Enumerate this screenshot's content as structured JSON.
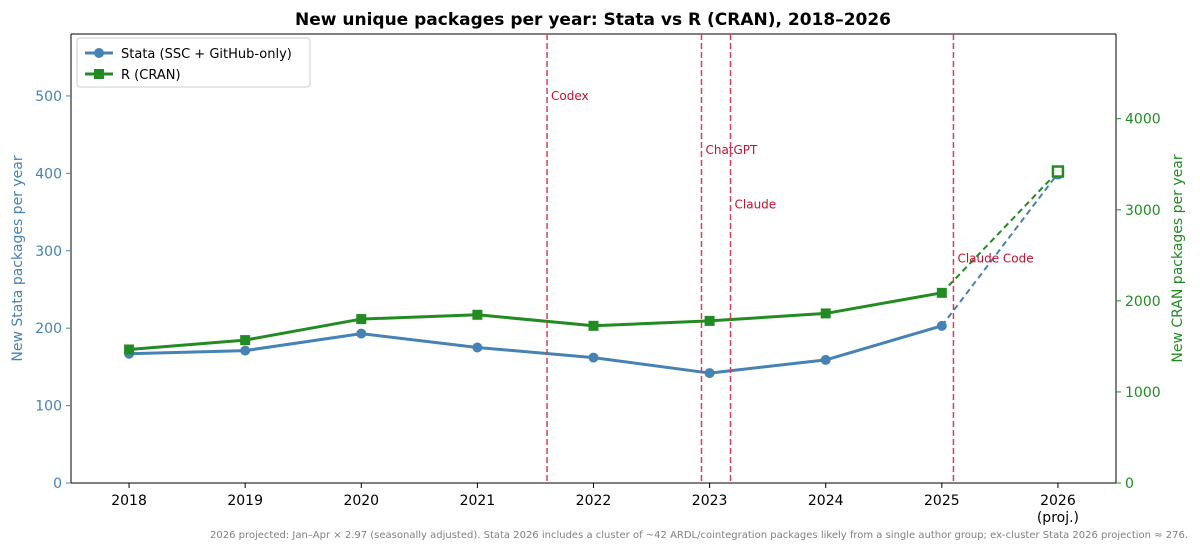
{
  "chart_data": {
    "type": "line",
    "title": "New unique packages per year: Stata vs R (CRAN), 2018–2026",
    "x_ticks": [
      "2018",
      "2019",
      "2020",
      "2021",
      "2022",
      "2023",
      "2024",
      "2025",
      "2026"
    ],
    "x_tick_sublabel": {
      "2026": "(proj.)"
    },
    "x": [
      2018,
      2019,
      2020,
      2021,
      2022,
      2023,
      2024,
      2025,
      2026
    ],
    "xlim": [
      2017.5,
      2026.5
    ],
    "left_axis": {
      "label": "New Stata packages per year",
      "ylim": [
        0,
        580
      ],
      "ticks": [
        0,
        100,
        200,
        300,
        400,
        500
      ],
      "color": "#4682b4"
    },
    "right_axis": {
      "label": "New CRAN packages per year",
      "ylim": [
        0,
        4930
      ],
      "ticks": [
        0,
        1000,
        2000,
        3000,
        4000
      ],
      "color": "#228b22"
    },
    "series": [
      {
        "name": "Stata (SSC + GitHub-only)",
        "axis": "left",
        "color": "#4682b4",
        "marker": "circle",
        "x": [
          2018,
          2019,
          2020,
          2021,
          2022,
          2023,
          2024,
          2025
        ],
        "values": [
          167,
          171,
          193,
          175,
          162,
          142,
          159,
          203
        ],
        "projected": {
          "x": [
            2025,
            2026
          ],
          "values": [
            203,
            400
          ]
        }
      },
      {
        "name": "R (CRAN)",
        "axis": "right",
        "color": "#228b22",
        "marker": "square",
        "x": [
          2018,
          2019,
          2020,
          2021,
          2022,
          2023,
          2024,
          2025
        ],
        "values": [
          1466,
          1569,
          1800,
          1847,
          1726,
          1780,
          1862,
          2088
        ],
        "projected": {
          "x": [
            2025,
            2026
          ],
          "values": [
            2088,
            3420
          ]
        }
      }
    ],
    "events": [
      {
        "label": "Codex",
        "x": 2021.6,
        "label_y": 500
      },
      {
        "label": "ChatGPT",
        "x": 2022.93,
        "label_y": 430
      },
      {
        "label": "Claude",
        "x": 2023.18,
        "label_y": 360
      },
      {
        "label": "Claude Code",
        "x": 2025.1,
        "label_y": 290
      }
    ],
    "event_color": "#dc3c5a",
    "legend_position": "top-left",
    "grid": false,
    "footnote": "2026 projected: Jan–Apr × 2.97 (seasonally adjusted). Stata 2026 includes a cluster of ~42 ARDL/cointegration packages likely from a single author group; ex-cluster Stata 2026 projection ≈ 276."
  }
}
